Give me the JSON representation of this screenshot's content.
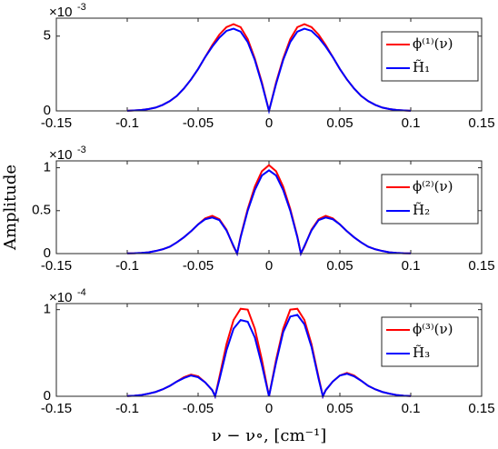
{
  "chart_data": [
    {
      "type": "line",
      "scale_base": "×10",
      "scale_exponent": "-3",
      "xlim": [
        -0.15,
        0.15
      ],
      "xticks": [
        -0.15,
        -0.1,
        -0.05,
        0,
        0.05,
        0.1,
        0.15
      ],
      "ylim": [
        0,
        6.2
      ],
      "yticks": [
        0,
        5
      ],
      "legend": "upper right",
      "x": [
        -0.1,
        -0.095,
        -0.09,
        -0.085,
        -0.08,
        -0.075,
        -0.07,
        -0.065,
        -0.06,
        -0.055,
        -0.05,
        -0.045,
        -0.04,
        -0.035,
        -0.03,
        -0.025,
        -0.02,
        -0.015,
        -0.01,
        -0.005,
        0,
        0.005,
        0.01,
        0.015,
        0.02,
        0.025,
        0.03,
        0.035,
        0.04,
        0.045,
        0.05,
        0.055,
        0.06,
        0.065,
        0.07,
        0.075,
        0.08,
        0.085,
        0.09,
        0.095,
        0.1
      ],
      "series": [
        {
          "name": "ϕ⁽¹⁾(ν)",
          "color": "#ff0000",
          "values": [
            0.01,
            0.03,
            0.06,
            0.12,
            0.22,
            0.4,
            0.65,
            1.0,
            1.5,
            2.1,
            2.8,
            3.6,
            4.4,
            5.1,
            5.6,
            5.8,
            5.6,
            4.8,
            3.5,
            1.9,
            0,
            1.9,
            3.5,
            4.8,
            5.6,
            5.8,
            5.6,
            5.1,
            4.4,
            3.6,
            2.8,
            2.1,
            1.5,
            1.0,
            0.65,
            0.4,
            0.22,
            0.12,
            0.06,
            0.03,
            0.01
          ]
        },
        {
          "name": "H̃₁",
          "color": "#0000ff",
          "values": [
            0.01,
            0.03,
            0.06,
            0.12,
            0.22,
            0.4,
            0.65,
            1.0,
            1.5,
            2.1,
            2.8,
            3.6,
            4.3,
            4.9,
            5.35,
            5.5,
            5.3,
            4.6,
            3.4,
            1.8,
            0,
            1.8,
            3.4,
            4.6,
            5.3,
            5.5,
            5.35,
            4.9,
            4.3,
            3.6,
            2.8,
            2.1,
            1.5,
            1.0,
            0.65,
            0.4,
            0.22,
            0.12,
            0.06,
            0.03,
            0.01
          ]
        }
      ]
    },
    {
      "type": "line",
      "scale_base": "×10",
      "scale_exponent": "-3",
      "ylabel": "Amplitude",
      "xlim": [
        -0.15,
        0.15
      ],
      "xticks": [
        -0.15,
        -0.1,
        -0.05,
        0,
        0.05,
        0.1,
        0.15
      ],
      "ylim": [
        0,
        1.08
      ],
      "yticks": [
        0,
        0.5,
        1
      ],
      "legend": "upper right",
      "x": [
        -0.1,
        -0.095,
        -0.09,
        -0.085,
        -0.08,
        -0.075,
        -0.07,
        -0.065,
        -0.06,
        -0.055,
        -0.05,
        -0.045,
        -0.04,
        -0.035,
        -0.03,
        -0.025,
        -0.0225,
        -0.02,
        -0.015,
        -0.01,
        -0.005,
        0,
        0.005,
        0.01,
        0.015,
        0.02,
        0.0225,
        0.025,
        0.03,
        0.035,
        0.04,
        0.045,
        0.05,
        0.055,
        0.06,
        0.065,
        0.07,
        0.075,
        0.08,
        0.085,
        0.09,
        0.095,
        0.1
      ],
      "series": [
        {
          "name": "ϕ⁽²⁾(ν)",
          "color": "#ff0000",
          "values": [
            0.002,
            0.004,
            0.008,
            0.015,
            0.03,
            0.05,
            0.08,
            0.13,
            0.19,
            0.26,
            0.34,
            0.41,
            0.44,
            0.4,
            0.28,
            0.08,
            0,
            0.2,
            0.52,
            0.78,
            0.96,
            1.03,
            0.96,
            0.78,
            0.52,
            0.2,
            0,
            0.08,
            0.28,
            0.4,
            0.44,
            0.41,
            0.34,
            0.26,
            0.19,
            0.13,
            0.08,
            0.05,
            0.03,
            0.015,
            0.008,
            0.004,
            0.002
          ]
        },
        {
          "name": "H̃₂",
          "color": "#0000ff",
          "values": [
            0.002,
            0.004,
            0.008,
            0.015,
            0.03,
            0.05,
            0.08,
            0.13,
            0.19,
            0.26,
            0.34,
            0.4,
            0.42,
            0.39,
            0.27,
            0.09,
            0,
            0.19,
            0.5,
            0.74,
            0.91,
            0.97,
            0.91,
            0.74,
            0.5,
            0.19,
            0,
            0.09,
            0.27,
            0.39,
            0.42,
            0.4,
            0.34,
            0.26,
            0.19,
            0.13,
            0.08,
            0.05,
            0.03,
            0.015,
            0.008,
            0.004,
            0.002
          ]
        }
      ]
    },
    {
      "type": "line",
      "scale_base": "×10",
      "scale_exponent": "-4",
      "xlabel": "ν − ν∘,  [cm⁻¹]",
      "xlim": [
        -0.15,
        0.15
      ],
      "xticks": [
        -0.15,
        -0.1,
        -0.05,
        0,
        0.05,
        0.1,
        0.15
      ],
      "ylim": [
        0,
        1.07
      ],
      "yticks": [
        0,
        1
      ],
      "legend": "upper right",
      "x": [
        -0.1,
        -0.095,
        -0.09,
        -0.085,
        -0.08,
        -0.075,
        -0.07,
        -0.065,
        -0.06,
        -0.055,
        -0.05,
        -0.045,
        -0.04,
        -0.038,
        -0.035,
        -0.03,
        -0.025,
        -0.02,
        -0.015,
        -0.01,
        -0.005,
        0,
        0.005,
        0.01,
        0.015,
        0.02,
        0.025,
        0.03,
        0.035,
        0.038,
        0.04,
        0.045,
        0.05,
        0.055,
        0.06,
        0.065,
        0.07,
        0.075,
        0.08,
        0.085,
        0.09,
        0.095,
        0.1
      ],
      "series": [
        {
          "name": "ϕ⁽³⁾(ν)",
          "color": "#ff0000",
          "values": [
            0.003,
            0.007,
            0.015,
            0.03,
            0.05,
            0.08,
            0.12,
            0.17,
            0.22,
            0.25,
            0.23,
            0.16,
            0.07,
            0,
            0.22,
            0.6,
            0.88,
            1.01,
            1.0,
            0.78,
            0.42,
            0,
            0.42,
            0.78,
            1.0,
            1.01,
            0.88,
            0.6,
            0.22,
            0,
            0.07,
            0.17,
            0.24,
            0.27,
            0.24,
            0.18,
            0.12,
            0.08,
            0.05,
            0.03,
            0.015,
            0.007,
            0.003
          ]
        },
        {
          "name": "H̃₃",
          "color": "#0000ff",
          "values": [
            0.003,
            0.007,
            0.015,
            0.03,
            0.05,
            0.08,
            0.12,
            0.17,
            0.21,
            0.24,
            0.22,
            0.16,
            0.07,
            0,
            0.19,
            0.53,
            0.78,
            0.88,
            0.86,
            0.68,
            0.36,
            0,
            0.39,
            0.74,
            0.92,
            0.94,
            0.83,
            0.57,
            0.2,
            0,
            0.07,
            0.17,
            0.24,
            0.26,
            0.23,
            0.18,
            0.12,
            0.08,
            0.05,
            0.03,
            0.015,
            0.007,
            0.003
          ]
        }
      ]
    }
  ]
}
